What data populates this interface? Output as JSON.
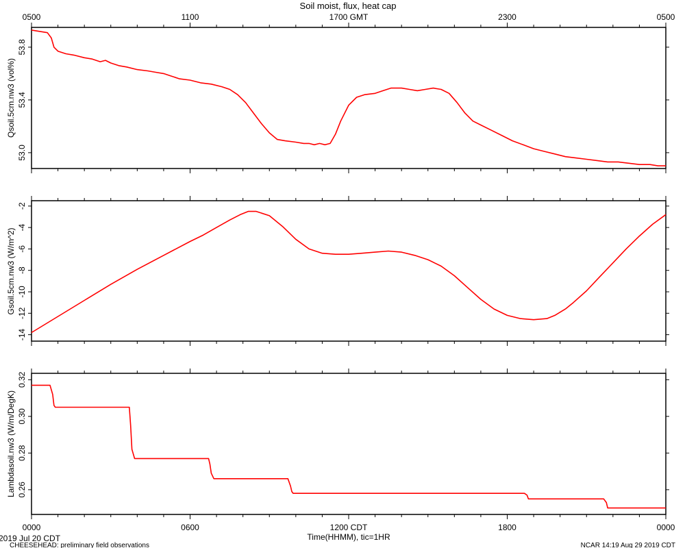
{
  "header": {
    "title": "Soil moist, flux, heat cap"
  },
  "top_axis": {
    "labels": [
      "0500",
      "1100",
      "1700 GMT",
      "2300",
      "0500"
    ]
  },
  "bottom_axis": {
    "labels": [
      "0000",
      "0600",
      "1200 CDT",
      "1800",
      "0000"
    ],
    "xlabel": "Time(HHMM), tic=1HR"
  },
  "footer": {
    "date": "2019 Jul 20 CDT",
    "project": "CHEESEHEAD: preliminary field observations",
    "credit": "NCAR 14:19 Aug 29 2019 CDT"
  },
  "colors": {
    "line": "#ff0000",
    "axis": "#000000",
    "background": "#ffffff"
  },
  "chart_data": [
    {
      "type": "line",
      "xlabel": "Time(HHMM), tic=1HR",
      "ylabel": "Qsoil.5cm.nw3 (vol%)",
      "xlim": [
        0,
        24
      ],
      "ylim": [
        52.88,
        53.95
      ],
      "yticks": [
        53.0,
        53.4,
        53.8
      ],
      "ytick_labels": [
        "53.0",
        "53.4",
        "53.8"
      ],
      "series": [
        {
          "x": [
            0,
            0.3,
            0.6,
            0.75,
            0.85,
            1.0,
            1.3,
            1.6,
            2.0,
            2.3,
            2.6,
            2.8,
            3.0,
            3.3,
            3.6,
            4.0,
            4.4,
            4.7,
            5.0,
            5.3,
            5.6,
            6.0,
            6.4,
            6.8,
            7.2,
            7.5,
            7.8,
            8.1,
            8.4,
            8.7,
            9.0,
            9.3,
            9.6,
            10.0,
            10.3,
            10.5,
            10.7,
            10.9,
            11.1,
            11.3,
            11.5,
            11.7,
            12.0,
            12.3,
            12.6,
            13.0,
            13.3,
            13.6,
            14.0,
            14.3,
            14.6,
            14.9,
            15.2,
            15.5,
            15.8,
            16.1,
            16.4,
            16.7,
            17.0,
            17.4,
            17.8,
            18.2,
            18.6,
            19.0,
            19.4,
            19.8,
            20.2,
            20.6,
            21.0,
            21.4,
            21.8,
            22.2,
            22.6,
            23.0,
            23.4,
            23.7,
            24.0
          ],
          "y": [
            53.93,
            53.92,
            53.91,
            53.87,
            53.8,
            53.77,
            53.75,
            53.74,
            53.72,
            53.71,
            53.69,
            53.7,
            53.68,
            53.66,
            53.65,
            53.63,
            53.62,
            53.61,
            53.6,
            53.58,
            53.56,
            53.55,
            53.53,
            53.52,
            53.5,
            53.48,
            53.44,
            53.38,
            53.3,
            53.22,
            53.15,
            53.1,
            53.09,
            53.08,
            53.07,
            53.07,
            53.06,
            53.07,
            53.06,
            53.07,
            53.14,
            53.24,
            53.36,
            53.42,
            53.44,
            53.45,
            53.47,
            53.49,
            53.49,
            53.48,
            53.47,
            53.48,
            53.49,
            53.48,
            53.45,
            53.38,
            53.3,
            53.24,
            53.21,
            53.17,
            53.13,
            53.09,
            53.06,
            53.03,
            53.01,
            52.99,
            52.97,
            52.96,
            52.95,
            52.94,
            52.93,
            52.93,
            52.92,
            52.91,
            52.91,
            52.9,
            52.9
          ]
        }
      ]
    },
    {
      "type": "line",
      "xlabel": "Time(HHMM), tic=1HR",
      "ylabel": "Gsoil.5cm.nw3 (W/m^2)",
      "xlim": [
        0,
        24
      ],
      "ylim": [
        -14.6,
        -1.5
      ],
      "yticks": [
        -2,
        -4,
        -6,
        -8,
        -10,
        -12,
        -14
      ],
      "ytick_labels": [
        "-2",
        "-4",
        "-6",
        "-8",
        "-10",
        "-12",
        "-14"
      ],
      "series": [
        {
          "x": [
            0,
            1,
            2,
            3,
            4,
            5,
            6,
            6.5,
            7,
            7.5,
            7.9,
            8.2,
            8.5,
            9.0,
            9.5,
            10.0,
            10.5,
            11.0,
            11.5,
            12.0,
            12.5,
            13.0,
            13.5,
            14.0,
            14.5,
            15.0,
            15.5,
            16.0,
            16.5,
            17.0,
            17.5,
            18.0,
            18.5,
            19.0,
            19.5,
            19.8,
            20.2,
            20.5,
            21.0,
            21.5,
            22.0,
            22.5,
            23.0,
            23.5,
            24.0
          ],
          "y": [
            -13.8,
            -12.3,
            -10.8,
            -9.3,
            -7.9,
            -6.6,
            -5.3,
            -4.7,
            -4.0,
            -3.3,
            -2.8,
            -2.5,
            -2.5,
            -2.9,
            -3.9,
            -5.1,
            -6.0,
            -6.4,
            -6.5,
            -6.5,
            -6.4,
            -6.3,
            -6.2,
            -6.3,
            -6.6,
            -7.0,
            -7.6,
            -8.5,
            -9.6,
            -10.7,
            -11.6,
            -12.2,
            -12.5,
            -12.6,
            -12.5,
            -12.2,
            -11.6,
            -11.0,
            -9.9,
            -8.6,
            -7.3,
            -6.0,
            -4.8,
            -3.7,
            -2.8
          ]
        }
      ]
    },
    {
      "type": "line",
      "xlabel": "Time(HHMM), tic=1HR",
      "ylabel": "Lambdasoil.nw3 (W/m/DegK)",
      "xlim": [
        0,
        24
      ],
      "ylim": [
        0.2465,
        0.3235
      ],
      "yticks": [
        0.26,
        0.28,
        0.3,
        0.32
      ],
      "ytick_labels": [
        "0.26",
        "0.28",
        "0.30",
        "0.32"
      ],
      "series": [
        {
          "x": [
            0,
            0.7,
            0.8,
            0.85,
            0.9,
            3.7,
            3.75,
            3.8,
            3.9,
            6.7,
            6.75,
            6.8,
            6.9,
            9.7,
            9.8,
            9.85,
            9.9,
            18.65,
            18.75,
            18.8,
            21.65,
            21.75,
            21.8,
            24.0
          ],
          "y": [
            0.317,
            0.317,
            0.312,
            0.306,
            0.305,
            0.305,
            0.295,
            0.282,
            0.277,
            0.277,
            0.274,
            0.269,
            0.266,
            0.266,
            0.262,
            0.259,
            0.258,
            0.258,
            0.257,
            0.255,
            0.255,
            0.253,
            0.25,
            0.25
          ]
        }
      ]
    }
  ]
}
